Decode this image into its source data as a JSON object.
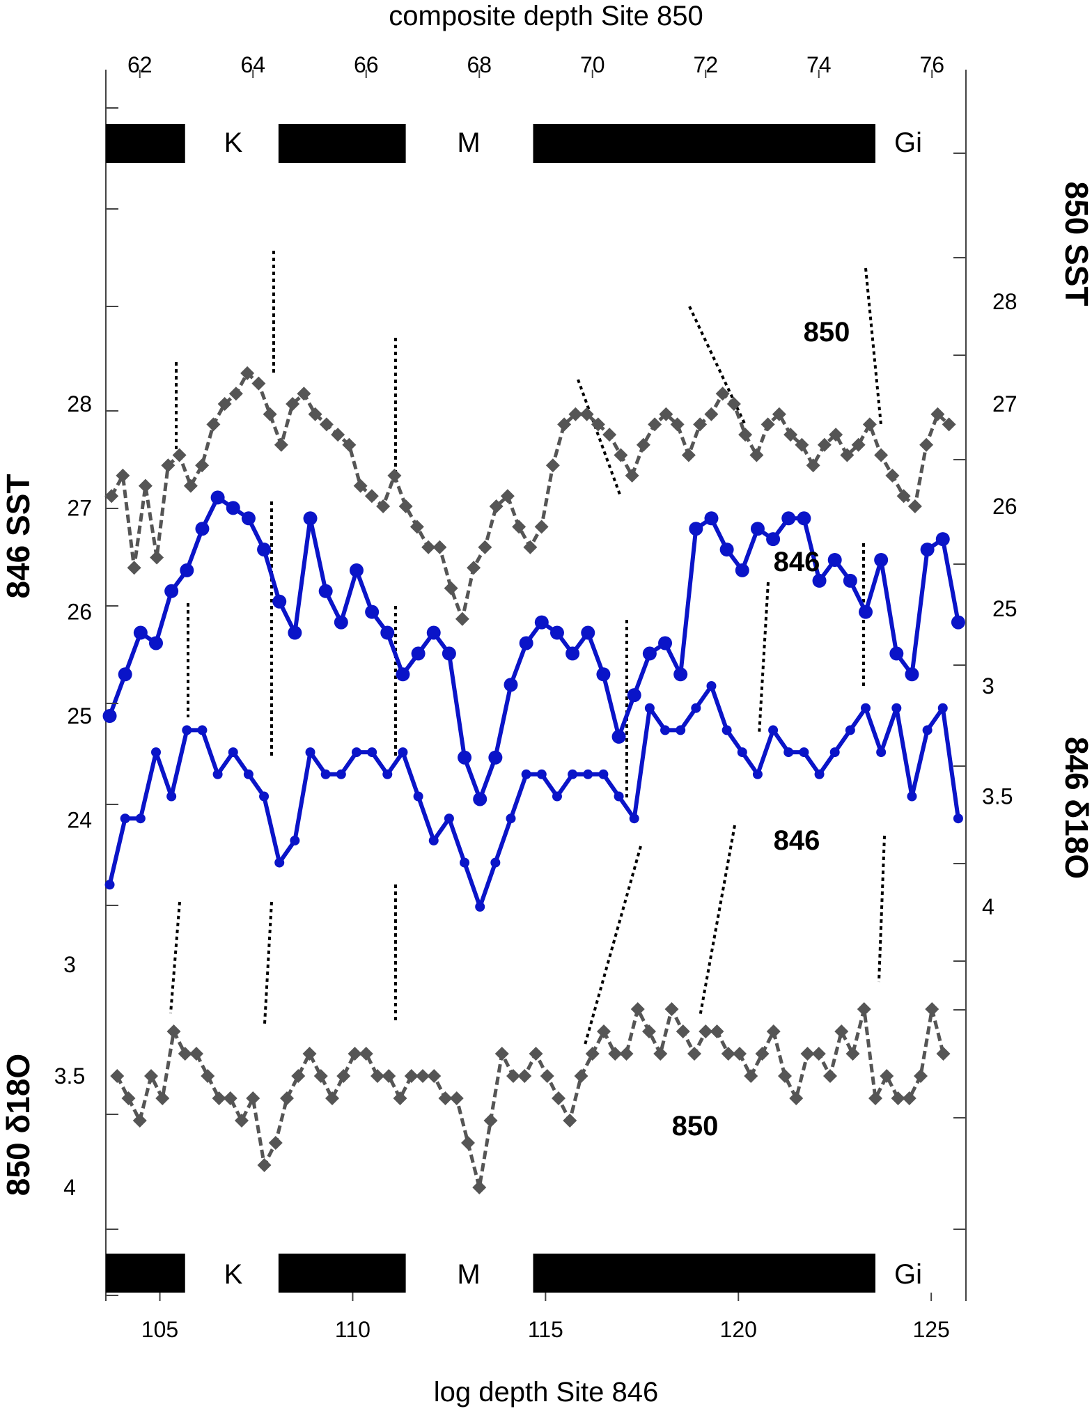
{
  "chart_data": {
    "type": "line",
    "top_axis": {
      "label": "composite depth Site 850",
      "ticks": [
        62,
        64,
        66,
        68,
        70,
        72,
        74,
        76
      ],
      "range": [
        61.4,
        76.6
      ]
    },
    "bottom_axis": {
      "label": "log depth Site 846",
      "ticks": [
        105,
        110,
        115,
        120,
        125
      ],
      "range": [
        103.6,
        125.9
      ]
    },
    "left_axes": [
      {
        "label": "846 SST",
        "ticks": [
          28,
          27,
          26,
          25,
          24
        ]
      },
      {
        "label": "850 δ18O",
        "ticks": [
          3,
          3.5,
          4
        ]
      }
    ],
    "right_axes": [
      {
        "label": "850 SST",
        "ticks": [
          28,
          27,
          26,
          25
        ]
      },
      {
        "label": "846 δ18O",
        "ticks": [
          3,
          3.5,
          4
        ]
      }
    ],
    "chrons": {
      "labels": [
        "K",
        "M",
        "Gi"
      ],
      "normal_intervals_top_depth": [
        [
          61.4,
          62.8
        ],
        [
          64.5,
          66.7
        ],
        [
          69.0,
          75.0
        ]
      ]
    },
    "series": [
      {
        "name": "850",
        "variable": "850 SST",
        "axis": "composite depth Site 850",
        "color": "#555555",
        "x": [
          61.5,
          61.7,
          61.9,
          62.1,
          62.3,
          62.5,
          62.7,
          62.9,
          63.1,
          63.3,
          63.5,
          63.7,
          63.9,
          64.1,
          64.3,
          64.5,
          64.7,
          64.9,
          65.1,
          65.3,
          65.5,
          65.7,
          65.9,
          66.1,
          66.3,
          66.5,
          66.7,
          66.9,
          67.1,
          67.3,
          67.5,
          67.7,
          67.9,
          68.1,
          68.3,
          68.5,
          68.7,
          68.9,
          69.1,
          69.3,
          69.5,
          69.7,
          69.9,
          70.1,
          70.3,
          70.5,
          70.7,
          70.9,
          71.1,
          71.3,
          71.5,
          71.7,
          71.9,
          72.1,
          72.3,
          72.5,
          72.7,
          72.9,
          73.1,
          73.3,
          73.5,
          73.7,
          73.9,
          74.1,
          74.3,
          74.5,
          74.7,
          74.9,
          75.1,
          75.3,
          75.5,
          75.7,
          75.9,
          76.1,
          76.3
        ],
        "y": [
          26.1,
          26.3,
          25.4,
          26.2,
          25.5,
          26.4,
          26.5,
          26.2,
          26.4,
          26.8,
          27.0,
          27.1,
          27.3,
          27.2,
          26.9,
          26.6,
          27.0,
          27.1,
          26.9,
          26.8,
          26.7,
          26.6,
          26.2,
          26.1,
          26.0,
          26.3,
          26.0,
          25.8,
          25.6,
          25.6,
          25.2,
          24.9,
          25.4,
          25.6,
          26.0,
          26.1,
          25.8,
          25.6,
          25.8,
          26.4,
          26.8,
          26.9,
          26.9,
          26.8,
          26.7,
          26.5,
          26.3,
          26.6,
          26.8,
          26.9,
          26.8,
          26.5,
          26.8,
          26.9,
          27.1,
          27.0,
          26.7,
          26.5,
          26.8,
          26.9,
          26.7,
          26.6,
          26.4,
          26.6,
          26.7,
          26.5,
          26.6,
          26.8,
          26.5,
          26.3,
          26.1,
          26.0,
          26.6,
          26.9,
          26.8
        ]
      },
      {
        "name": "846",
        "variable": "846 SST",
        "axis": "log depth Site 846",
        "color": "#0a14c8",
        "x": [
          103.7,
          104.1,
          104.5,
          104.9,
          105.3,
          105.7,
          106.1,
          106.5,
          106.9,
          107.3,
          107.7,
          108.1,
          108.5,
          108.9,
          109.3,
          109.7,
          110.1,
          110.5,
          110.9,
          111.3,
          111.7,
          112.1,
          112.5,
          112.9,
          113.3,
          113.7,
          114.1,
          114.5,
          114.9,
          115.3,
          115.7,
          116.1,
          116.5,
          116.9,
          117.3,
          117.7,
          118.1,
          118.5,
          118.9,
          119.3,
          119.7,
          120.1,
          120.5,
          120.9,
          121.3,
          121.7,
          122.1,
          122.5,
          122.9,
          123.3,
          123.7,
          124.1,
          124.5,
          124.9,
          125.3,
          125.7
        ],
        "y": [
          25.0,
          25.4,
          25.8,
          25.7,
          26.2,
          26.4,
          26.8,
          27.1,
          27.0,
          26.9,
          26.6,
          26.1,
          25.8,
          26.9,
          26.2,
          25.9,
          26.4,
          26.0,
          25.8,
          25.4,
          25.6,
          25.8,
          25.6,
          24.6,
          24.2,
          24.6,
          25.3,
          25.7,
          25.9,
          25.8,
          25.6,
          25.8,
          25.4,
          24.8,
          25.2,
          25.6,
          25.7,
          25.4,
          26.8,
          26.9,
          26.6,
          26.4,
          26.8,
          26.7,
          26.9,
          26.9,
          26.3,
          26.5,
          26.3,
          26.0,
          26.5,
          25.6,
          25.4,
          26.6,
          26.7,
          25.9
        ]
      },
      {
        "name": "846",
        "variable": "846 δ18O",
        "axis": "log depth Site 846",
        "color": "#0a14c8",
        "x": [
          103.7,
          104.1,
          104.5,
          104.9,
          105.3,
          105.7,
          106.1,
          106.5,
          106.9,
          107.3,
          107.7,
          108.1,
          108.5,
          108.9,
          109.3,
          109.7,
          110.1,
          110.5,
          110.9,
          111.3,
          111.7,
          112.1,
          112.5,
          112.9,
          113.3,
          113.7,
          114.1,
          114.5,
          114.9,
          115.3,
          115.7,
          116.1,
          116.5,
          116.9,
          117.3,
          117.7,
          118.1,
          118.5,
          118.9,
          119.3,
          119.7,
          120.1,
          120.5,
          120.9,
          121.3,
          121.7,
          122.1,
          122.5,
          122.9,
          123.3,
          123.7,
          124.1,
          124.5,
          124.9,
          125.3,
          125.7
        ],
        "y": [
          3.9,
          3.6,
          3.6,
          3.3,
          3.5,
          3.2,
          3.2,
          3.4,
          3.3,
          3.4,
          3.5,
          3.8,
          3.7,
          3.3,
          3.4,
          3.4,
          3.3,
          3.3,
          3.4,
          3.3,
          3.5,
          3.7,
          3.6,
          3.8,
          4.0,
          3.8,
          3.6,
          3.4,
          3.4,
          3.5,
          3.4,
          3.4,
          3.4,
          3.5,
          3.6,
          3.1,
          3.2,
          3.2,
          3.1,
          3.0,
          3.2,
          3.3,
          3.4,
          3.2,
          3.3,
          3.3,
          3.4,
          3.3,
          3.2,
          3.1,
          3.3,
          3.1,
          3.5,
          3.2,
          3.1,
          3.6
        ]
      },
      {
        "name": "850",
        "variable": "850 δ18O",
        "axis": "composite depth Site 850",
        "color": "#555555",
        "x": [
          61.6,
          61.8,
          62.0,
          62.2,
          62.4,
          62.6,
          62.8,
          63.0,
          63.2,
          63.4,
          63.6,
          63.8,
          64.0,
          64.2,
          64.4,
          64.6,
          64.8,
          65.0,
          65.2,
          65.4,
          65.6,
          65.8,
          66.0,
          66.2,
          66.4,
          66.6,
          66.8,
          67.0,
          67.2,
          67.4,
          67.6,
          67.8,
          68.0,
          68.2,
          68.4,
          68.6,
          68.8,
          69.0,
          69.2,
          69.4,
          69.6,
          69.8,
          70.0,
          70.2,
          70.4,
          70.6,
          70.8,
          71.0,
          71.2,
          71.4,
          71.6,
          71.8,
          72.0,
          72.2,
          72.4,
          72.6,
          72.8,
          73.0,
          73.2,
          73.4,
          73.6,
          73.8,
          74.0,
          74.2,
          74.4,
          74.6,
          74.8,
          75.0,
          75.2,
          75.4,
          75.6,
          75.8,
          76.0,
          76.2
        ],
        "y": [
          3.5,
          3.6,
          3.7,
          3.5,
          3.6,
          3.3,
          3.4,
          3.4,
          3.5,
          3.6,
          3.6,
          3.7,
          3.6,
          3.9,
          3.8,
          3.6,
          3.5,
          3.4,
          3.5,
          3.6,
          3.5,
          3.4,
          3.4,
          3.5,
          3.5,
          3.6,
          3.5,
          3.5,
          3.5,
          3.6,
          3.6,
          3.8,
          4.0,
          3.7,
          3.4,
          3.5,
          3.5,
          3.4,
          3.5,
          3.6,
          3.7,
          3.5,
          3.4,
          3.3,
          3.4,
          3.4,
          3.2,
          3.3,
          3.4,
          3.2,
          3.3,
          3.4,
          3.3,
          3.3,
          3.4,
          3.4,
          3.5,
          3.4,
          3.3,
          3.5,
          3.6,
          3.4,
          3.4,
          3.5,
          3.3,
          3.4,
          3.2,
          3.6,
          3.5,
          3.6,
          3.6,
          3.5,
          3.2,
          3.4
        ]
      }
    ],
    "tie_lines": "dotted correlation lines between 850 and 846 records"
  }
}
